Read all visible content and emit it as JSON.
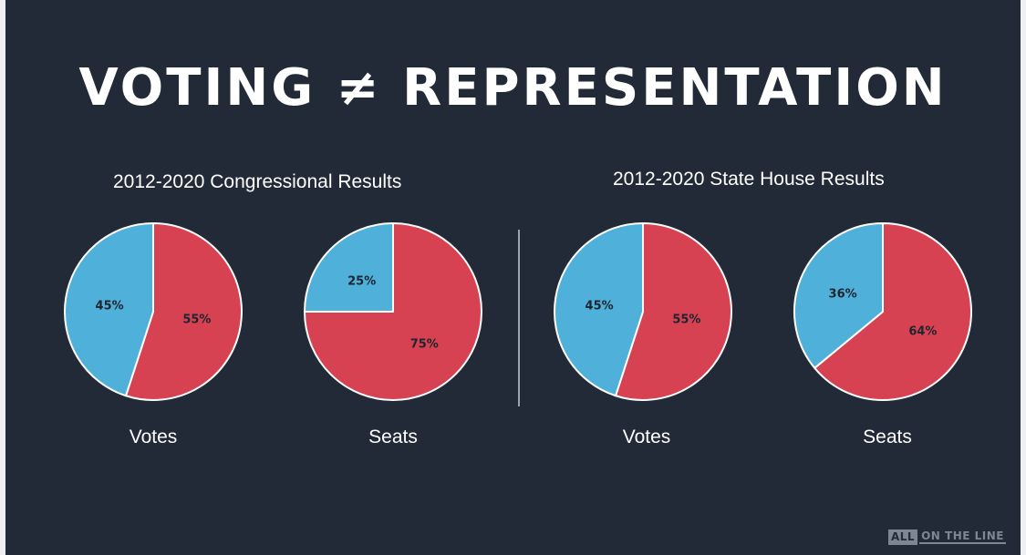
{
  "title": "VOTING ≠ REPRESENTATION",
  "sections": [
    {
      "title": "2012-2020 Congressional Results"
    },
    {
      "title": "2012-2020 State House Results"
    }
  ],
  "colors": {
    "background": "#212a36",
    "red": "#d74252",
    "blue": "#4fb0da"
  },
  "logo": {
    "box": "ALL",
    "text": "ON THE LINE"
  },
  "chart_data": [
    {
      "type": "pie",
      "section": "2012-2020 Congressional Results",
      "label": "Votes",
      "slices": [
        {
          "value": 55,
          "label": "55%",
          "color": "#d74252"
        },
        {
          "value": 45,
          "label": "45%",
          "color": "#4fb0da"
        }
      ]
    },
    {
      "type": "pie",
      "section": "2012-2020 Congressional Results",
      "label": "Seats",
      "slices": [
        {
          "value": 75,
          "label": "75%",
          "color": "#d74252"
        },
        {
          "value": 25,
          "label": "25%",
          "color": "#4fb0da"
        }
      ]
    },
    {
      "type": "pie",
      "section": "2012-2020 State House Results",
      "label": "Votes",
      "slices": [
        {
          "value": 55,
          "label": "55%",
          "color": "#d74252"
        },
        {
          "value": 45,
          "label": "45%",
          "color": "#4fb0da"
        }
      ]
    },
    {
      "type": "pie",
      "section": "2012-2020 State House Results",
      "label": "Seats",
      "slices": [
        {
          "value": 64,
          "label": "64%",
          "color": "#d74252"
        },
        {
          "value": 36,
          "label": "36%",
          "color": "#4fb0da"
        }
      ]
    }
  ]
}
